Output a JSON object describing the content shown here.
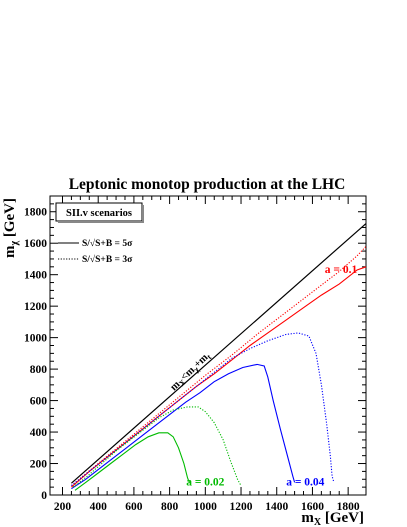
{
  "chart_data": {
    "type": "line",
    "title": "Leptonic monotop production at the LHC",
    "xlabel": "m_X [GeV]",
    "ylabel": "m_χ [GeV]",
    "xlim": [
      130,
      1900
    ],
    "ylim": [
      0,
      1900
    ],
    "xticks": [
      200,
      400,
      600,
      800,
      1000,
      1200,
      1400,
      1600,
      1800
    ],
    "yticks": [
      200,
      400,
      600,
      800,
      1000,
      1200,
      1400,
      1600,
      1800
    ],
    "grid": false,
    "scenario_box": "SII.v scenarios",
    "legend": {
      "placement": "top-left",
      "entries": [
        {
          "label": "S/√S+B = 5σ",
          "style": "solid"
        },
        {
          "label": "S/√S+B = 3σ",
          "style": "dotted"
        }
      ]
    },
    "diagonal": {
      "label": "m_X < m_χ + m_t",
      "x": [
        250,
        1900
      ],
      "y": [
        75,
        1725
      ]
    },
    "series": [
      {
        "label": "a = 0.1",
        "color": "#ff0000",
        "style": "solid",
        "x": [
          250,
          350,
          450,
          550,
          650,
          750,
          850,
          950,
          1050,
          1150,
          1250,
          1350,
          1450,
          1550,
          1650,
          1750,
          1850,
          1900
        ],
        "y": [
          50,
          150,
          240,
          330,
          420,
          510,
          600,
          690,
          770,
          860,
          950,
          1030,
          1110,
          1190,
          1270,
          1340,
          1430,
          1450
        ]
      },
      {
        "label": "",
        "color": "#ff0000",
        "style": "dotted",
        "x": [
          250,
          400,
          550,
          700,
          850,
          1000,
          1150,
          1300,
          1450,
          1600,
          1750,
          1850,
          1900
        ],
        "y": [
          60,
          200,
          340,
          480,
          620,
          760,
          890,
          1030,
          1160,
          1290,
          1420,
          1520,
          1580
        ]
      },
      {
        "label": "a = 0.04",
        "color": "#0000ff",
        "style": "solid",
        "x": [
          250,
          330,
          410,
          490,
          570,
          650,
          730,
          810,
          890,
          970,
          1050,
          1130,
          1210,
          1290,
          1330,
          1350,
          1380,
          1420,
          1460,
          1490,
          1500
        ],
        "y": [
          40,
          100,
          170,
          240,
          310,
          380,
          450,
          520,
          590,
          650,
          720,
          770,
          810,
          830,
          820,
          750,
          600,
          420,
          250,
          120,
          80
        ]
      },
      {
        "label": "",
        "color": "#0000ff",
        "style": "dotted",
        "x": [
          250,
          350,
          450,
          550,
          650,
          750,
          850,
          950,
          1050,
          1150,
          1250,
          1350,
          1450,
          1520,
          1580,
          1620,
          1650,
          1680,
          1700,
          1710,
          1720
        ],
        "y": [
          60,
          150,
          240,
          330,
          420,
          510,
          600,
          690,
          780,
          870,
          930,
          980,
          1020,
          1030,
          1010,
          900,
          700,
          450,
          250,
          120,
          80
        ]
      },
      {
        "label": "a = 0.02",
        "color": "#00bb00",
        "style": "solid",
        "x": [
          270,
          330,
          400,
          470,
          540,
          610,
          680,
          740,
          790,
          820,
          850,
          880,
          900,
          910
        ],
        "y": [
          30,
          80,
          140,
          200,
          260,
          320,
          370,
          395,
          395,
          370,
          300,
          200,
          110,
          80
        ]
      },
      {
        "label": "",
        "color": "#00bb00",
        "style": "dotted",
        "x": [
          260,
          340,
          420,
          500,
          580,
          660,
          740,
          820,
          900,
          960,
          1000,
          1050,
          1100,
          1140,
          1180,
          1200
        ],
        "y": [
          50,
          120,
          200,
          280,
          350,
          420,
          490,
          540,
          560,
          560,
          530,
          460,
          350,
          220,
          100,
          60
        ]
      }
    ]
  }
}
